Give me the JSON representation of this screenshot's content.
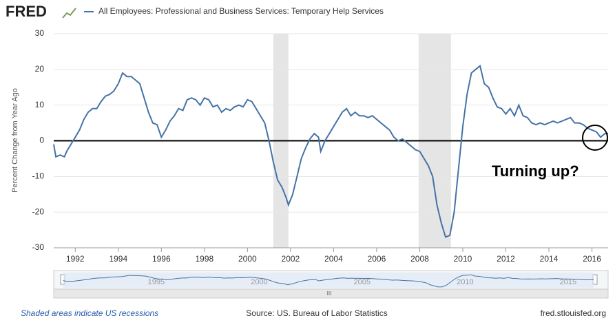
{
  "chart_data": {
    "type": "line",
    "logo": "FRED",
    "series": [
      {
        "name": "All Employees: Professional and Business Services: Temporary Help Services",
        "color": "#4572a7",
        "values": [
          -1,
          -4.5,
          -4,
          -4.5,
          -3,
          -1,
          1,
          3,
          6,
          8,
          9,
          9,
          11,
          12.5,
          13,
          14,
          16,
          19,
          18,
          18,
          17,
          16,
          12,
          8,
          5,
          4.5,
          1,
          3,
          5.5,
          7,
          9,
          8.5,
          11.5,
          12,
          11.5,
          10,
          12,
          11.5,
          9.5,
          10,
          8,
          9,
          8.5,
          9.5,
          10,
          9.5,
          11.5,
          11,
          9,
          7,
          5,
          0,
          -6,
          -11,
          -13,
          -16,
          -18,
          -15,
          -10,
          -5,
          -2,
          0.5,
          2,
          1,
          -3,
          0,
          2,
          4,
          6,
          8,
          9,
          7,
          8,
          7,
          7,
          6.5,
          7,
          6,
          5,
          4,
          3,
          1,
          0,
          0.5,
          -0.5,
          -1.5,
          -2.5,
          -3,
          -5,
          -7,
          -10,
          -18,
          -23,
          -27,
          -26.5,
          -20,
          -8,
          4,
          13,
          19,
          20,
          21,
          16,
          15,
          12,
          9.5,
          9,
          7.5,
          9,
          7,
          10,
          7,
          6.5,
          5,
          4.5,
          5,
          4.5,
          5,
          5.5,
          5,
          5.5,
          6,
          6.5,
          5,
          5,
          4.5,
          3.5,
          3,
          2.5,
          1,
          2,
          2
        ]
      }
    ],
    "x": [
      1991.0,
      1991.1,
      1991.3,
      1991.5,
      1991.6,
      1991.8,
      1992.0,
      1992.2,
      1992.4,
      1992.6,
      1992.8,
      1993.0,
      1993.2,
      1993.4,
      1993.6,
      1993.8,
      1994.0,
      1994.2,
      1994.4,
      1994.6,
      1994.8,
      1995.0,
      1995.2,
      1995.4,
      1995.6,
      1995.8,
      1996.0,
      1996.2,
      1996.4,
      1996.6,
      1996.8,
      1997.0,
      1997.2,
      1997.4,
      1997.6,
      1997.8,
      1998.0,
      1998.2,
      1998.4,
      1998.6,
      1998.8,
      1999.0,
      1999.2,
      1999.4,
      1999.6,
      1999.8,
      2000.0,
      2000.2,
      2000.4,
      2000.6,
      2000.8,
      2001.0,
      2001.2,
      2001.4,
      2001.6,
      2001.8,
      2001.9,
      2002.1,
      2002.3,
      2002.5,
      2002.7,
      2002.9,
      2003.1,
      2003.3,
      2003.4,
      2003.6,
      2003.8,
      2004.0,
      2004.2,
      2004.4,
      2004.6,
      2004.8,
      2005.0,
      2005.2,
      2005.4,
      2005.6,
      2005.8,
      2006.0,
      2006.2,
      2006.4,
      2006.6,
      2006.8,
      2007.0,
      2007.2,
      2007.4,
      2007.6,
      2007.8,
      2008.0,
      2008.2,
      2008.4,
      2008.6,
      2008.8,
      2009.0,
      2009.2,
      2009.4,
      2009.6,
      2009.8,
      2010.0,
      2010.2,
      2010.4,
      2010.6,
      2010.8,
      2011.0,
      2011.2,
      2011.4,
      2011.6,
      2011.8,
      2012.0,
      2012.2,
      2012.4,
      2012.6,
      2012.8,
      2013.0,
      2013.2,
      2013.4,
      2013.6,
      2013.8,
      2014.0,
      2014.2,
      2014.4,
      2014.6,
      2014.8,
      2015.0,
      2015.2,
      2015.4,
      2015.6,
      2015.8,
      2016.0,
      2016.2,
      2016.4,
      2016.6,
      2016.75
    ],
    "recessions": [
      [
        2001.2,
        2001.9
      ],
      [
        2007.95,
        2009.45
      ]
    ],
    "xlim": [
      1991.0,
      2016.75
    ],
    "xticks": [
      1992,
      1994,
      1996,
      1998,
      2000,
      2002,
      2004,
      2006,
      2008,
      2010,
      2012,
      2014,
      2016
    ],
    "ylim": [
      -30,
      30
    ],
    "yticks": [
      -30,
      -20,
      -10,
      0,
      10,
      20,
      30
    ],
    "y_label": "Percent Change from Year Ago",
    "grid": true,
    "annotation": "Turning up?",
    "navigator_ticks": [
      1995,
      2000,
      2005,
      2010,
      2015
    ],
    "footer_left": "Shaded areas indicate US recessions",
    "footer_center": "Source: US. Bureau of Labor Statistics",
    "footer_right": "fred.stlouisfed.org"
  }
}
